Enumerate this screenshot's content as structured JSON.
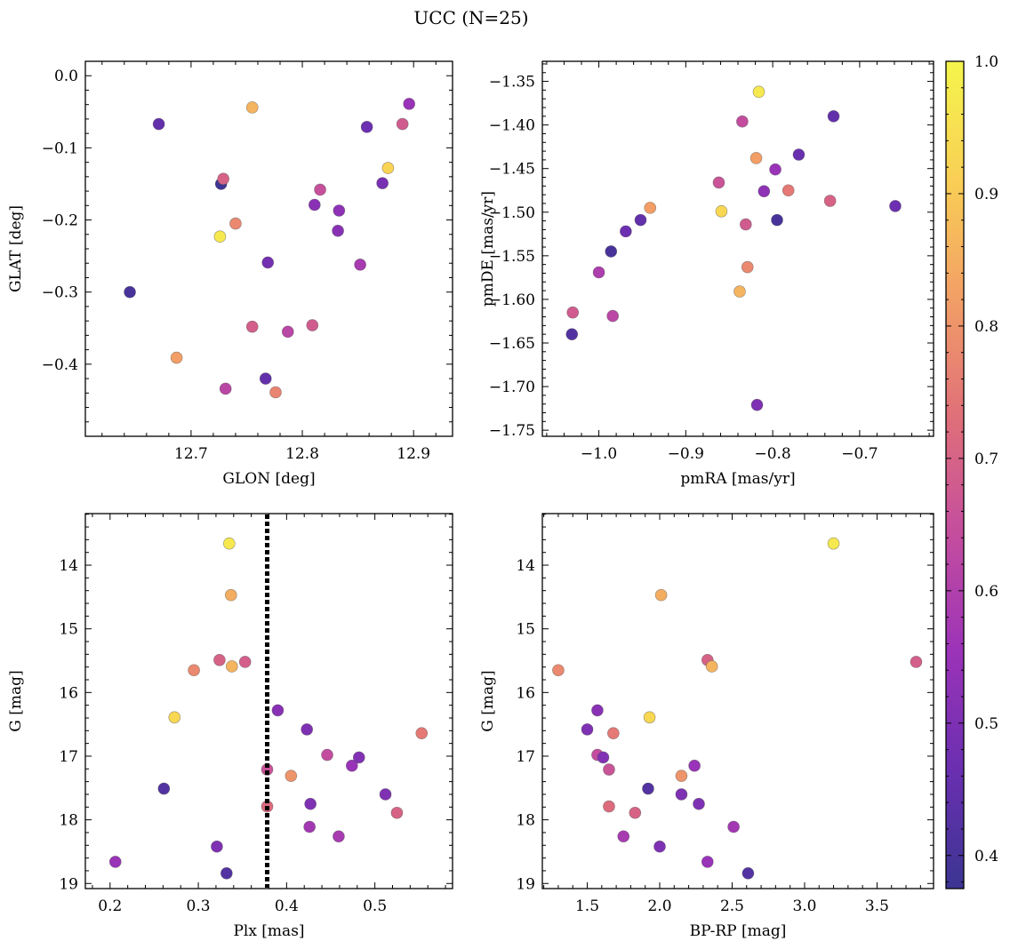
{
  "title": "UCC (N=25)",
  "colors": {
    "colormap": "plasma",
    "colorbar_stops": [
      "#3b3592",
      "#6a2fb0",
      "#9b33b8",
      "#c44d9e",
      "#e07079",
      "#f29f66",
      "#f9cf55",
      "#f5f54c"
    ],
    "reference_line": "#000000"
  },
  "colorbar": {
    "range": [
      0.375,
      1.0
    ],
    "ticks": [
      "0.4",
      "0.5",
      "0.6",
      "0.7",
      "0.8",
      "0.9",
      "1.0"
    ],
    "tick_values": [
      0.4,
      0.5,
      0.6,
      0.7,
      0.8,
      0.9,
      1.0
    ]
  },
  "chart_data": [
    {
      "type": "scatter",
      "xlabel": "GLON [deg]",
      "ylabel": "GLAT [deg]",
      "xlim": [
        12.605,
        12.935
      ],
      "ylim": [
        -0.5,
        0.02
      ],
      "xticks": [
        12.7,
        12.8,
        12.9
      ],
      "xticklabels": [
        "12.7",
        "12.8",
        "12.9"
      ],
      "yticks": [
        0.0,
        -0.1,
        -0.2,
        -0.3,
        -0.4
      ],
      "yticklabels": [
        "0.0",
        "−0.1",
        "−0.2",
        "−0.3",
        "−0.4"
      ],
      "points": [
        {
          "x": 12.645,
          "y": -0.3,
          "c": 0.4
        },
        {
          "x": 12.671,
          "y": -0.067,
          "c": 0.45
        },
        {
          "x": 12.687,
          "y": -0.391,
          "c": 0.82
        },
        {
          "x": 12.726,
          "y": -0.223,
          "c": 0.97
        },
        {
          "x": 12.727,
          "y": -0.15,
          "c": 0.38
        },
        {
          "x": 12.729,
          "y": -0.143,
          "c": 0.7
        },
        {
          "x": 12.731,
          "y": -0.434,
          "c": 0.62
        },
        {
          "x": 12.74,
          "y": -0.205,
          "c": 0.78
        },
        {
          "x": 12.755,
          "y": -0.044,
          "c": 0.86
        },
        {
          "x": 12.755,
          "y": -0.348,
          "c": 0.69
        },
        {
          "x": 12.767,
          "y": -0.42,
          "c": 0.45
        },
        {
          "x": 12.769,
          "y": -0.259,
          "c": 0.48
        },
        {
          "x": 12.776,
          "y": -0.439,
          "c": 0.77
        },
        {
          "x": 12.787,
          "y": -0.355,
          "c": 0.62
        },
        {
          "x": 12.809,
          "y": -0.346,
          "c": 0.68
        },
        {
          "x": 12.811,
          "y": -0.179,
          "c": 0.52
        },
        {
          "x": 12.816,
          "y": -0.158,
          "c": 0.65
        },
        {
          "x": 12.832,
          "y": -0.215,
          "c": 0.52
        },
        {
          "x": 12.833,
          "y": -0.187,
          "c": 0.53
        },
        {
          "x": 12.852,
          "y": -0.262,
          "c": 0.58
        },
        {
          "x": 12.858,
          "y": -0.071,
          "c": 0.47
        },
        {
          "x": 12.872,
          "y": -0.149,
          "c": 0.49
        },
        {
          "x": 12.877,
          "y": -0.128,
          "c": 0.92
        },
        {
          "x": 12.89,
          "y": -0.067,
          "c": 0.68
        },
        {
          "x": 12.896,
          "y": -0.039,
          "c": 0.55
        }
      ]
    },
    {
      "type": "scatter",
      "xlabel": "pmRA [mas/yr]",
      "ylabel": "pmDE [mas/yr]",
      "xlim": [
        -1.065,
        -0.615
      ],
      "ylim": [
        -1.757,
        -1.327
      ],
      "xticks": [
        -1.0,
        -0.9,
        -0.8,
        -0.7
      ],
      "xticklabels": [
        "−1.0",
        "−0.9",
        "−0.8",
        "−0.7"
      ],
      "yticks": [
        -1.35,
        -1.4,
        -1.45,
        -1.5,
        -1.55,
        -1.6,
        -1.65,
        -1.7,
        -1.75
      ],
      "yticklabels": [
        "−1.35",
        "−1.40",
        "−1.45",
        "−1.50",
        "−1.55",
        "−1.60",
        "−1.65",
        "−1.70",
        "−1.75"
      ],
      "points": [
        {
          "x": -1.031,
          "y": -1.64,
          "c": 0.42
        },
        {
          "x": -1.03,
          "y": -1.615,
          "c": 0.68
        },
        {
          "x": -1.0,
          "y": -1.569,
          "c": 0.59
        },
        {
          "x": -0.986,
          "y": -1.545,
          "c": 0.4
        },
        {
          "x": -0.984,
          "y": -1.619,
          "c": 0.62
        },
        {
          "x": -0.969,
          "y": -1.522,
          "c": 0.47
        },
        {
          "x": -0.952,
          "y": -1.509,
          "c": 0.45
        },
        {
          "x": -0.941,
          "y": -1.495,
          "c": 0.82
        },
        {
          "x": -0.862,
          "y": -1.466,
          "c": 0.66
        },
        {
          "x": -0.859,
          "y": -1.499,
          "c": 0.93
        },
        {
          "x": -0.838,
          "y": -1.591,
          "c": 0.86
        },
        {
          "x": -0.835,
          "y": -1.396,
          "c": 0.64
        },
        {
          "x": -0.831,
          "y": -1.514,
          "c": 0.68
        },
        {
          "x": -0.829,
          "y": -1.563,
          "c": 0.78
        },
        {
          "x": -0.819,
          "y": -1.438,
          "c": 0.82
        },
        {
          "x": -0.818,
          "y": -1.721,
          "c": 0.5
        },
        {
          "x": -0.816,
          "y": -1.362,
          "c": 0.97
        },
        {
          "x": -0.81,
          "y": -1.476,
          "c": 0.53
        },
        {
          "x": -0.797,
          "y": -1.451,
          "c": 0.55
        },
        {
          "x": -0.795,
          "y": -1.509,
          "c": 0.4
        },
        {
          "x": -0.782,
          "y": -1.475,
          "c": 0.75
        },
        {
          "x": -0.77,
          "y": -1.434,
          "c": 0.46
        },
        {
          "x": -0.734,
          "y": -1.487,
          "c": 0.7
        },
        {
          "x": -0.73,
          "y": -1.39,
          "c": 0.45
        },
        {
          "x": -0.659,
          "y": -1.493,
          "c": 0.47
        }
      ]
    },
    {
      "type": "scatter",
      "xlabel": "Plx [mas]",
      "ylabel": "G [mag]",
      "xlim": [
        0.172,
        0.588
      ],
      "ylim": [
        19.08,
        13.19
      ],
      "y_inverted": true,
      "xticks": [
        0.2,
        0.3,
        0.4,
        0.5
      ],
      "xticklabels": [
        "0.2",
        "0.3",
        "0.4",
        "0.5"
      ],
      "yticks": [
        14,
        15,
        16,
        17,
        18,
        19
      ],
      "yticklabels": [
        "14",
        "15",
        "16",
        "17",
        "18",
        "19"
      ],
      "vline": 0.378,
      "points": [
        {
          "x": 0.206,
          "y": 18.66,
          "c": 0.55
        },
        {
          "x": 0.261,
          "y": 17.51,
          "c": 0.42
        },
        {
          "x": 0.273,
          "y": 16.39,
          "c": 0.93
        },
        {
          "x": 0.295,
          "y": 15.65,
          "c": 0.78
        },
        {
          "x": 0.321,
          "y": 18.42,
          "c": 0.5
        },
        {
          "x": 0.324,
          "y": 15.49,
          "c": 0.7
        },
        {
          "x": 0.332,
          "y": 18.84,
          "c": 0.42
        },
        {
          "x": 0.335,
          "y": 13.66,
          "c": 0.97
        },
        {
          "x": 0.337,
          "y": 14.47,
          "c": 0.85
        },
        {
          "x": 0.338,
          "y": 15.59,
          "c": 0.86
        },
        {
          "x": 0.353,
          "y": 15.52,
          "c": 0.69
        },
        {
          "x": 0.378,
          "y": 17.21,
          "c": 0.66
        },
        {
          "x": 0.378,
          "y": 17.79,
          "c": 0.72
        },
        {
          "x": 0.39,
          "y": 16.28,
          "c": 0.52
        },
        {
          "x": 0.405,
          "y": 17.31,
          "c": 0.8
        },
        {
          "x": 0.423,
          "y": 16.58,
          "c": 0.5
        },
        {
          "x": 0.426,
          "y": 18.11,
          "c": 0.57
        },
        {
          "x": 0.427,
          "y": 17.75,
          "c": 0.5
        },
        {
          "x": 0.446,
          "y": 16.98,
          "c": 0.64
        },
        {
          "x": 0.459,
          "y": 18.26,
          "c": 0.58
        },
        {
          "x": 0.474,
          "y": 17.15,
          "c": 0.55
        },
        {
          "x": 0.482,
          "y": 17.02,
          "c": 0.51
        },
        {
          "x": 0.512,
          "y": 17.6,
          "c": 0.5
        },
        {
          "x": 0.525,
          "y": 17.89,
          "c": 0.7
        },
        {
          "x": 0.553,
          "y": 16.64,
          "c": 0.75
        }
      ]
    },
    {
      "type": "scatter",
      "xlabel": "BP-RP [mag]",
      "ylabel": "G [mag]",
      "xlim": [
        1.19,
        3.89
      ],
      "ylim": [
        19.08,
        13.19
      ],
      "y_inverted": true,
      "xticks": [
        1.5,
        2.0,
        2.5,
        3.0,
        3.5
      ],
      "xticklabels": [
        "1.5",
        "2.0",
        "2.5",
        "3.0",
        "3.5"
      ],
      "yticks": [
        14,
        15,
        16,
        17,
        18,
        19
      ],
      "yticklabels": [
        "14",
        "15",
        "16",
        "17",
        "18",
        "19"
      ],
      "points": [
        {
          "x": 1.3,
          "y": 15.65,
          "c": 0.78
        },
        {
          "x": 1.5,
          "y": 16.58,
          "c": 0.5
        },
        {
          "x": 1.57,
          "y": 16.28,
          "c": 0.52
        },
        {
          "x": 1.57,
          "y": 16.98,
          "c": 0.64
        },
        {
          "x": 1.61,
          "y": 17.02,
          "c": 0.51
        },
        {
          "x": 1.65,
          "y": 17.21,
          "c": 0.66
        },
        {
          "x": 1.65,
          "y": 17.79,
          "c": 0.72
        },
        {
          "x": 1.68,
          "y": 16.64,
          "c": 0.75
        },
        {
          "x": 1.75,
          "y": 18.26,
          "c": 0.58
        },
        {
          "x": 1.83,
          "y": 17.89,
          "c": 0.7
        },
        {
          "x": 1.92,
          "y": 17.51,
          "c": 0.42
        },
        {
          "x": 1.93,
          "y": 16.39,
          "c": 0.93
        },
        {
          "x": 2.0,
          "y": 18.42,
          "c": 0.5
        },
        {
          "x": 2.01,
          "y": 14.47,
          "c": 0.85
        },
        {
          "x": 2.15,
          "y": 17.6,
          "c": 0.5
        },
        {
          "x": 2.15,
          "y": 17.31,
          "c": 0.8
        },
        {
          "x": 2.24,
          "y": 17.15,
          "c": 0.55
        },
        {
          "x": 2.27,
          "y": 17.75,
          "c": 0.5
        },
        {
          "x": 2.33,
          "y": 15.49,
          "c": 0.7
        },
        {
          "x": 2.33,
          "y": 18.66,
          "c": 0.55
        },
        {
          "x": 2.36,
          "y": 15.59,
          "c": 0.86
        },
        {
          "x": 2.51,
          "y": 18.11,
          "c": 0.57
        },
        {
          "x": 2.61,
          "y": 18.84,
          "c": 0.42
        },
        {
          "x": 3.2,
          "y": 13.66,
          "c": 0.97
        },
        {
          "x": 3.77,
          "y": 15.52,
          "c": 0.69
        }
      ]
    }
  ]
}
